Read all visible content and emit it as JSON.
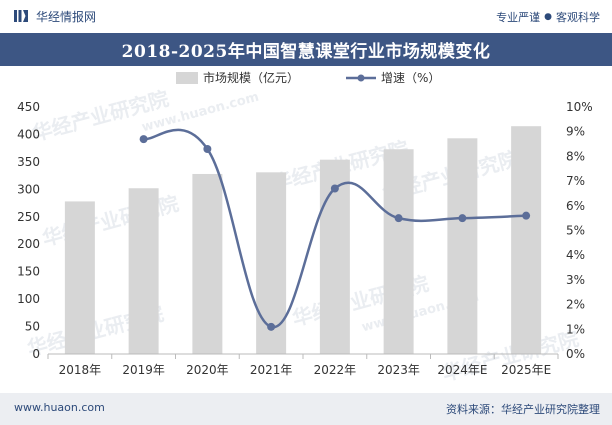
{
  "header": {
    "brand_name": "华经情报网",
    "slogan_left": "专业严谨",
    "slogan_separator": "●",
    "slogan_right": "客观科学"
  },
  "chart_data": {
    "type": "bar+line",
    "title": "2018-2025年中国智慧课堂行业市场规模变化",
    "categories": [
      "2018年",
      "2019年",
      "2020年",
      "2021年",
      "2022年",
      "2023年",
      "2024年E",
      "2025年E"
    ],
    "series": [
      {
        "name": "市场规模（亿元）",
        "type": "bar",
        "axis": "left",
        "color": "#d6d6d6",
        "values": [
          278,
          302,
          328,
          331,
          354,
          373,
          393,
          415
        ]
      },
      {
        "name": "增速（%）",
        "type": "line",
        "axis": "right",
        "color": "#5c6e99",
        "values": [
          null,
          8.7,
          8.3,
          1.1,
          6.7,
          5.5,
          5.5,
          5.6
        ]
      }
    ],
    "left_axis": {
      "min": 0,
      "max": 450,
      "step": 50,
      "tick_labels": [
        "0",
        "50",
        "100",
        "150",
        "200",
        "250",
        "300",
        "350",
        "400",
        "450"
      ]
    },
    "right_axis": {
      "min": 0,
      "max": 10,
      "step": 1,
      "tick_labels": [
        "0%",
        "1%",
        "2%",
        "3%",
        "4%",
        "5%",
        "6%",
        "7%",
        "8%",
        "9%",
        "10%"
      ]
    },
    "legend_position": "top-center",
    "gridlines": false
  },
  "watermark_text": "华经产业研究院",
  "watermark_url": "www.huaon.com",
  "footer": {
    "website": "www.huaon.com",
    "source": "资料来源：华经产业研究院整理"
  },
  "colors": {
    "title_bg": "#3d5684",
    "text": "#2d4a7a",
    "bar": "#d6d6d6",
    "line": "#5c6e99"
  }
}
